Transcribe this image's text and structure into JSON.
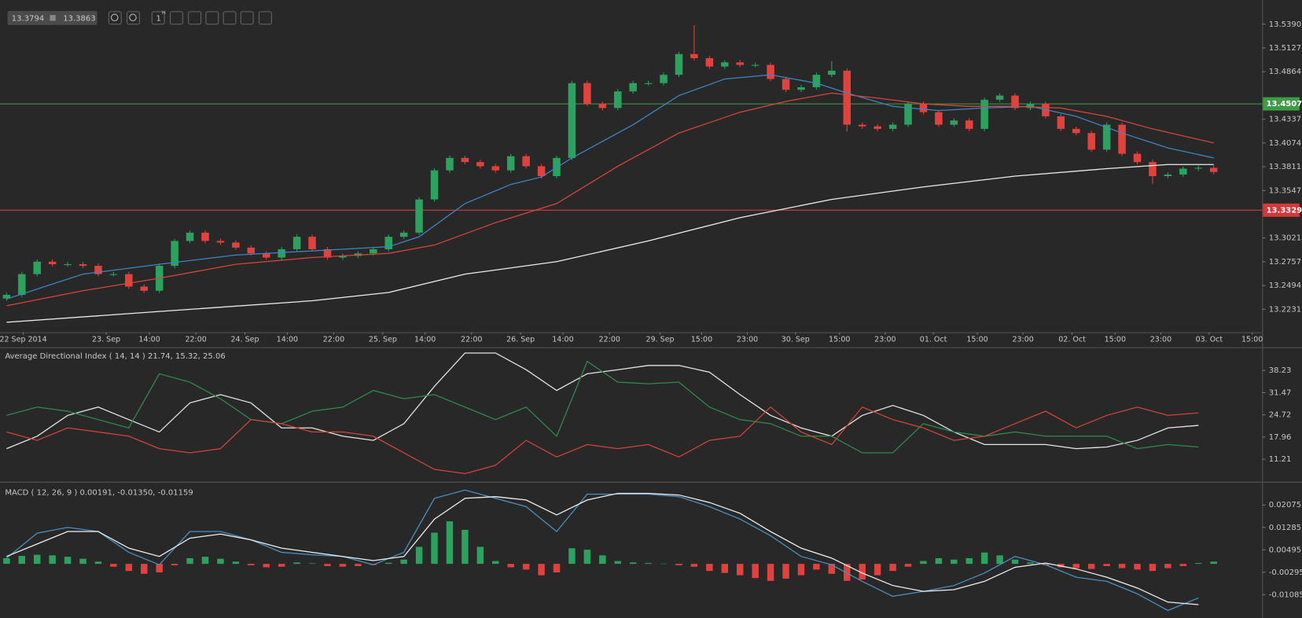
{
  "toolbar": {
    "bid": "13.3794",
    "ask": "13.3863",
    "timeframe": "1",
    "timeframe_unit": "H"
  },
  "chart_data": [
    {
      "type": "candlestick",
      "open": [
        13.235,
        13.239,
        13.262,
        13.2758,
        13.273,
        13.273,
        13.2712,
        13.262,
        13.262,
        13.2482,
        13.2436,
        13.2712,
        13.2988,
        13.308,
        13.2988,
        13.297,
        13.2914,
        13.285,
        13.2804,
        13.2896,
        13.3034,
        13.2896,
        13.2804,
        13.2822,
        13.285,
        13.2896,
        13.3034,
        13.308,
        13.3448,
        13.377,
        13.3908,
        13.3862,
        13.3816,
        13.377,
        13.3927,
        13.3816,
        13.3706,
        13.3908,
        13.4737,
        13.4507,
        13.4461,
        13.4645,
        13.4737,
        13.4737,
        13.4829,
        13.5059,
        13.5013,
        13.4921,
        13.4967,
        13.4939,
        13.4939,
        13.4783,
        13.4663,
        13.4691,
        13.4829,
        13.4875,
        13.4276,
        13.4258,
        13.423,
        13.4276,
        13.4507,
        13.4415,
        13.4276,
        13.4323,
        13.423,
        13.4553,
        13.4599,
        13.4461,
        13.4507,
        13.4369,
        13.423,
        13.4184,
        13.4,
        13.4276,
        13.3954,
        13.3862,
        13.3706,
        13.3724,
        13.3789,
        13.3798
      ],
      "high": [
        13.2415,
        13.2645,
        13.2783,
        13.2783,
        13.2755,
        13.2755,
        13.2737,
        13.2645,
        13.2645,
        13.2507,
        13.2737,
        13.3013,
        13.3105,
        13.3105,
        13.3013,
        13.2995,
        13.2939,
        13.2875,
        13.2921,
        13.3059,
        13.3059,
        13.2921,
        13.2847,
        13.2875,
        13.2921,
        13.3059,
        13.3105,
        13.3473,
        13.3795,
        13.3933,
        13.3933,
        13.3887,
        13.3841,
        13.3952,
        13.3952,
        13.3841,
        13.3933,
        13.4762,
        13.4762,
        13.4532,
        13.467,
        13.4762,
        13.4762,
        13.4854,
        13.5084,
        13.538,
        13.5038,
        13.4992,
        13.4992,
        13.4964,
        13.4964,
        13.4808,
        13.4716,
        13.4854,
        13.498,
        13.49,
        13.4301,
        13.4283,
        13.4301,
        13.4532,
        13.4532,
        13.444,
        13.4348,
        13.4348,
        13.4578,
        13.4624,
        13.4624,
        13.4532,
        13.4532,
        13.4394,
        13.4255,
        13.4209,
        13.4301,
        13.4301,
        13.3979,
        13.3887,
        13.3749,
        13.3814,
        13.3823,
        13.3823
      ],
      "low": [
        13.2325,
        13.2365,
        13.2595,
        13.2705,
        13.2705,
        13.2687,
        13.2595,
        13.2595,
        13.2457,
        13.2411,
        13.2411,
        13.2687,
        13.2963,
        13.2963,
        13.2945,
        13.2889,
        13.2825,
        13.2779,
        13.2779,
        13.2871,
        13.2871,
        13.2779,
        13.2779,
        13.2797,
        13.2825,
        13.2871,
        13.3009,
        13.3055,
        13.3423,
        13.3745,
        13.3837,
        13.3791,
        13.3745,
        13.3745,
        13.3791,
        13.3681,
        13.3681,
        13.3883,
        13.4482,
        13.4436,
        13.4436,
        13.462,
        13.4712,
        13.4712,
        13.4804,
        13.4988,
        13.4896,
        13.4896,
        13.4914,
        13.4914,
        13.4758,
        13.4638,
        13.4638,
        13.4666,
        13.4804,
        13.42,
        13.4233,
        13.4205,
        13.4205,
        13.4251,
        13.439,
        13.4251,
        13.4251,
        13.4205,
        13.4205,
        13.4528,
        13.4436,
        13.4436,
        13.4344,
        13.4205,
        13.4159,
        13.3975,
        13.3975,
        13.3929,
        13.3837,
        13.362,
        13.3681,
        13.3699,
        13.3764,
        13.3727
      ],
      "close": [
        13.239,
        13.262,
        13.2758,
        13.273,
        13.273,
        13.2712,
        13.262,
        13.262,
        13.2482,
        13.2436,
        13.2712,
        13.2988,
        13.308,
        13.2988,
        13.297,
        13.2914,
        13.285,
        13.2804,
        13.2896,
        13.3034,
        13.2896,
        13.2804,
        13.2822,
        13.285,
        13.2896,
        13.3034,
        13.308,
        13.3448,
        13.377,
        13.3908,
        13.3862,
        13.3816,
        13.377,
        13.3927,
        13.3816,
        13.3706,
        13.3908,
        13.4737,
        13.4507,
        13.4461,
        13.4645,
        13.4737,
        13.4737,
        13.4829,
        13.5059,
        13.5013,
        13.4921,
        13.4967,
        13.4939,
        13.4939,
        13.4783,
        13.4663,
        13.4691,
        13.4829,
        13.4875,
        13.4276,
        13.4258,
        13.423,
        13.4276,
        13.4507,
        13.4415,
        13.4276,
        13.4323,
        13.423,
        13.4553,
        13.4599,
        13.4461,
        13.4507,
        13.4369,
        13.423,
        13.4184,
        13.4,
        13.4276,
        13.3954,
        13.3862,
        13.3706,
        13.3724,
        13.3789,
        13.3798,
        13.3752
      ],
      "up_color": "#2ba35f",
      "down_color": "#e2423d",
      "overlays": [
        {
          "color": "#3d86c6",
          "x": [
            0,
            5,
            10,
            15,
            20,
            25,
            27,
            30,
            33,
            35,
            37,
            41,
            44,
            47,
            50,
            53,
            55,
            58,
            61,
            64,
            67,
            70,
            73,
            76,
            79
          ],
          "values": [
            13.2344,
            13.262,
            13.273,
            13.2832,
            13.2878,
            13.2924,
            13.3034,
            13.3402,
            13.3614,
            13.3697,
            13.3908,
            13.4276,
            13.4599,
            13.4783,
            13.4829,
            13.4737,
            13.4626,
            13.4479,
            13.4433,
            13.4461,
            13.4479,
            13.4369,
            13.4184,
            13.4019,
            13.3908
          ]
        },
        {
          "color": "#d8453a",
          "x": [
            0,
            5,
            10,
            15,
            20,
            25,
            28,
            32,
            36,
            40,
            44,
            48,
            51,
            54,
            57,
            60,
            63,
            66,
            69,
            72,
            75,
            79
          ],
          "values": [
            13.227,
            13.2436,
            13.2574,
            13.273,
            13.2804,
            13.285,
            13.2942,
            13.3191,
            13.3402,
            13.3816,
            13.4184,
            13.4415,
            13.4534,
            13.4626,
            13.4571,
            13.4507,
            13.4479,
            13.4479,
            13.4461,
            13.4369,
            13.423,
            13.4074
          ]
        },
        {
          "color": "#ececec",
          "x": [
            0,
            10,
            20,
            25,
            30,
            36,
            42,
            48,
            54,
            60,
            66,
            72,
            76,
            79
          ],
          "values": [
            13.2086,
            13.2206,
            13.2325,
            13.2417,
            13.262,
            13.2758,
            13.2988,
            13.3246,
            13.3448,
            13.3586,
            13.3706,
            13.3789,
            13.3835,
            13.3835
          ]
        }
      ],
      "levels": [
        {
          "value": 13.4507,
          "color": "#3f9b46"
        },
        {
          "value": 13.3329,
          "color": "#d8373a"
        }
      ],
      "xlim": [
        -0.43,
        82.17
      ],
      "xticks": [
        {
          "value": 1.09,
          "label": "22 Sep 2014"
        },
        {
          "value": 6.52,
          "label": "23. Sep"
        },
        {
          "value": 9.35,
          "label": "14:00"
        },
        {
          "value": 12.39,
          "label": "22:00"
        },
        {
          "value": 15.6,
          "label": "24. Sep"
        },
        {
          "value": 18.37,
          "label": "14:00"
        },
        {
          "value": 21.41,
          "label": "22:00"
        },
        {
          "value": 24.62,
          "label": "25. Sep"
        },
        {
          "value": 27.39,
          "label": "14:00"
        },
        {
          "value": 30.43,
          "label": "22:00"
        },
        {
          "value": 33.64,
          "label": "26. Sep"
        },
        {
          "value": 36.41,
          "label": "14:00"
        },
        {
          "value": 39.46,
          "label": "22:00"
        },
        {
          "value": 42.77,
          "label": "29. Sep"
        },
        {
          "value": 45.49,
          "label": "15:00"
        },
        {
          "value": 48.48,
          "label": "23:00"
        },
        {
          "value": 51.63,
          "label": "30. Sep"
        },
        {
          "value": 54.51,
          "label": "15:00"
        },
        {
          "value": 57.5,
          "label": "23:00"
        },
        {
          "value": 60.65,
          "label": "01. Oct"
        },
        {
          "value": 63.53,
          "label": "15:00"
        },
        {
          "value": 66.52,
          "label": "23:00"
        },
        {
          "value": 69.73,
          "label": "02. Oct"
        },
        {
          "value": 72.55,
          "label": "15:00"
        },
        {
          "value": 75.54,
          "label": "23:00"
        },
        {
          "value": 78.7,
          "label": "03. Oct"
        },
        {
          "value": 81.52,
          "label": "15:00"
        }
      ],
      "ylim": [
        13.1976,
        13.5657
      ],
      "yticks": [
        {
          "value": 13.539,
          "label": "13.5390"
        },
        13.5127,
        13.4864,
        13.4337,
        13.4074,
        13.3811,
        13.3547,
        13.3021,
        13.2757,
        13.2494,
        13.2231
      ]
    },
    {
      "type": "line",
      "title": "Average Directional Index ( 14, 14 ) 21.74, 15.32, 25.06",
      "x": [
        0,
        2,
        4,
        6,
        8,
        10,
        12,
        14,
        16,
        18,
        20,
        22,
        24,
        26,
        28,
        30,
        32,
        34,
        36,
        38,
        40,
        42,
        44,
        46,
        48,
        50,
        52,
        54,
        56,
        58,
        60,
        62,
        64,
        66,
        68,
        70,
        72,
        74,
        76,
        78
      ],
      "series": [
        {
          "color": "#e6e6e6",
          "values": [
            14.43,
            18.23,
            24.56,
            27.09,
            23.29,
            19.5,
            28.36,
            30.89,
            28.36,
            20.76,
            20.76,
            18.23,
            16.96,
            22.03,
            33.42,
            43.55,
            43.55,
            38.48,
            32.15,
            37.22,
            38.48,
            39.75,
            39.75,
            37.72,
            30.89,
            24.56,
            20.76,
            18.23,
            24.56,
            27.6,
            24.56,
            19.5,
            15.7,
            15.7,
            15.7,
            14.43,
            14.94,
            16.96,
            20.76,
            21.52
          ]
        },
        {
          "color": "#2f8a4c",
          "values": [
            24.56,
            27.09,
            25.82,
            23.29,
            20.76,
            37.22,
            34.69,
            29.62,
            23.29,
            22.03,
            25.82,
            27.09,
            32.15,
            29.62,
            30.89,
            27.09,
            23.29,
            27.09,
            18.23,
            41.01,
            34.69,
            34.18,
            34.69,
            27.09,
            23.29,
            22.03,
            18.23,
            18.23,
            13.17,
            13.17,
            22.03,
            19.5,
            18.23,
            19.5,
            18.23,
            18.23,
            18.23,
            14.43,
            15.7,
            14.94
          ]
        },
        {
          "color": "#d2433a",
          "values": [
            19.5,
            16.96,
            20.76,
            19.5,
            18.23,
            14.43,
            13.17,
            14.43,
            23.29,
            22.03,
            19.5,
            19.5,
            18.23,
            13.17,
            8.1,
            6.84,
            9.37,
            16.96,
            11.9,
            15.7,
            14.43,
            15.7,
            11.9,
            16.96,
            18.23,
            27.09,
            19.5,
            15.7,
            27.09,
            23.29,
            20.76,
            16.96,
            18.23,
            22.03,
            25.82,
            20.76,
            24.56,
            27.09,
            24.56,
            25.32
          ]
        }
      ],
      "xlim": [
        -0.43,
        82.17
      ],
      "ylim": [
        4.37,
        45.32
      ],
      "yticks": [
        38.23,
        31.47,
        24.72,
        17.96,
        11.21
      ]
    },
    {
      "type": "macd",
      "title": "MACD ( 12, 26, 9 ) 0.00191, -0.01350, -0.01159",
      "x": [
        0,
        2,
        4,
        6,
        8,
        10,
        12,
        14,
        16,
        18,
        20,
        22,
        24,
        26,
        28,
        30,
        32,
        34,
        36,
        38,
        40,
        42,
        44,
        46,
        48,
        50,
        52,
        54,
        56,
        58,
        60,
        62,
        64,
        66,
        68,
        70,
        72,
        74,
        76,
        78
      ],
      "series": [
        {
          "color": "#4a8fc4",
          "values": [
            0.00202,
            0.0108,
            0.01284,
            0.01138,
            0.00407,
            -0.00032,
            0.01138,
            0.01138,
            0.00846,
            0.00407,
            0.00319,
            0.0026,
            -0.00032,
            0.00407,
            0.02309,
            0.02601,
            0.02309,
            0.02016,
            0.01138,
            0.02455,
            0.02455,
            0.02455,
            0.02367,
            0.02016,
            0.01577,
            0.00992,
            0.0026,
            -0.00032,
            -0.00617,
            -0.01144,
            -0.00968,
            -0.00764,
            -0.00325,
            0.0026,
            -0.00032,
            -0.00471,
            -0.00617,
            -0.01056,
            -0.01641,
            -0.01203
          ]
        },
        {
          "color": "#f0f0f0",
          "values": [
            0.0026,
            0.00699,
            0.01138,
            0.01138,
            0.00553,
            0.0026,
            0.00904,
            0.0105,
            0.00846,
            0.00553,
            0.00407,
            0.0026,
            0.00114,
            0.0026,
            0.01577,
            0.02309,
            0.02367,
            0.0225,
            0.01723,
            0.0225,
            0.02484,
            0.02484,
            0.02426,
            0.02162,
            0.01782,
            0.01138,
            0.00553,
            0.00202,
            -0.00325,
            -0.00764,
            -0.00968,
            -0.0091,
            -0.00617,
            -0.0012,
            0.00026,
            -0.00178,
            -0.00471,
            -0.00851,
            -0.01349,
            -0.01437
          ]
        }
      ],
      "histogram": {
        "up_color": "#2ba35f",
        "down_color": "#e2423d",
        "values": [
          0.002,
          0.0028,
          0.0032,
          0.003,
          0.0025,
          0.0018,
          0.0008,
          -0.001,
          -0.0025,
          -0.0035,
          -0.003,
          -0.0005,
          0.002,
          0.0025,
          0.0018,
          0.0008,
          -0.0005,
          -0.0012,
          -0.001,
          0.0005,
          0.0002,
          -0.0008,
          -0.001,
          -0.0008,
          -0.0004,
          0.0004,
          0.0015,
          0.006,
          0.011,
          0.015,
          0.012,
          0.006,
          0.001,
          -0.0012,
          -0.002,
          -0.004,
          -0.003,
          0.0055,
          0.005,
          0.003,
          0.001,
          0.0005,
          0.0003,
          0.0001,
          -0.0005,
          -0.001,
          -0.0025,
          -0.0032,
          -0.004,
          -0.005,
          -0.006,
          -0.0052,
          -0.004,
          -0.002,
          -0.0035,
          -0.006,
          -0.0055,
          -0.004,
          -0.0025,
          -0.001,
          0.001,
          0.002,
          0.0015,
          0.002,
          0.004,
          0.003,
          0.0015,
          0.0005,
          -0.0005,
          -0.0012,
          -0.0015,
          -0.0018,
          -0.0008,
          -0.0015,
          -0.002,
          -0.0025,
          -0.0015,
          -0.0008,
          0.0003,
          0.0008
        ]
      },
      "xlim": [
        -0.43,
        82.17
      ],
      "ylim": [
        -0.01904,
        0.02836
      ],
      "yticks": [
        0.02075,
        0.01285,
        0.00495,
        -0.00295,
        -0.01085
      ]
    }
  ]
}
